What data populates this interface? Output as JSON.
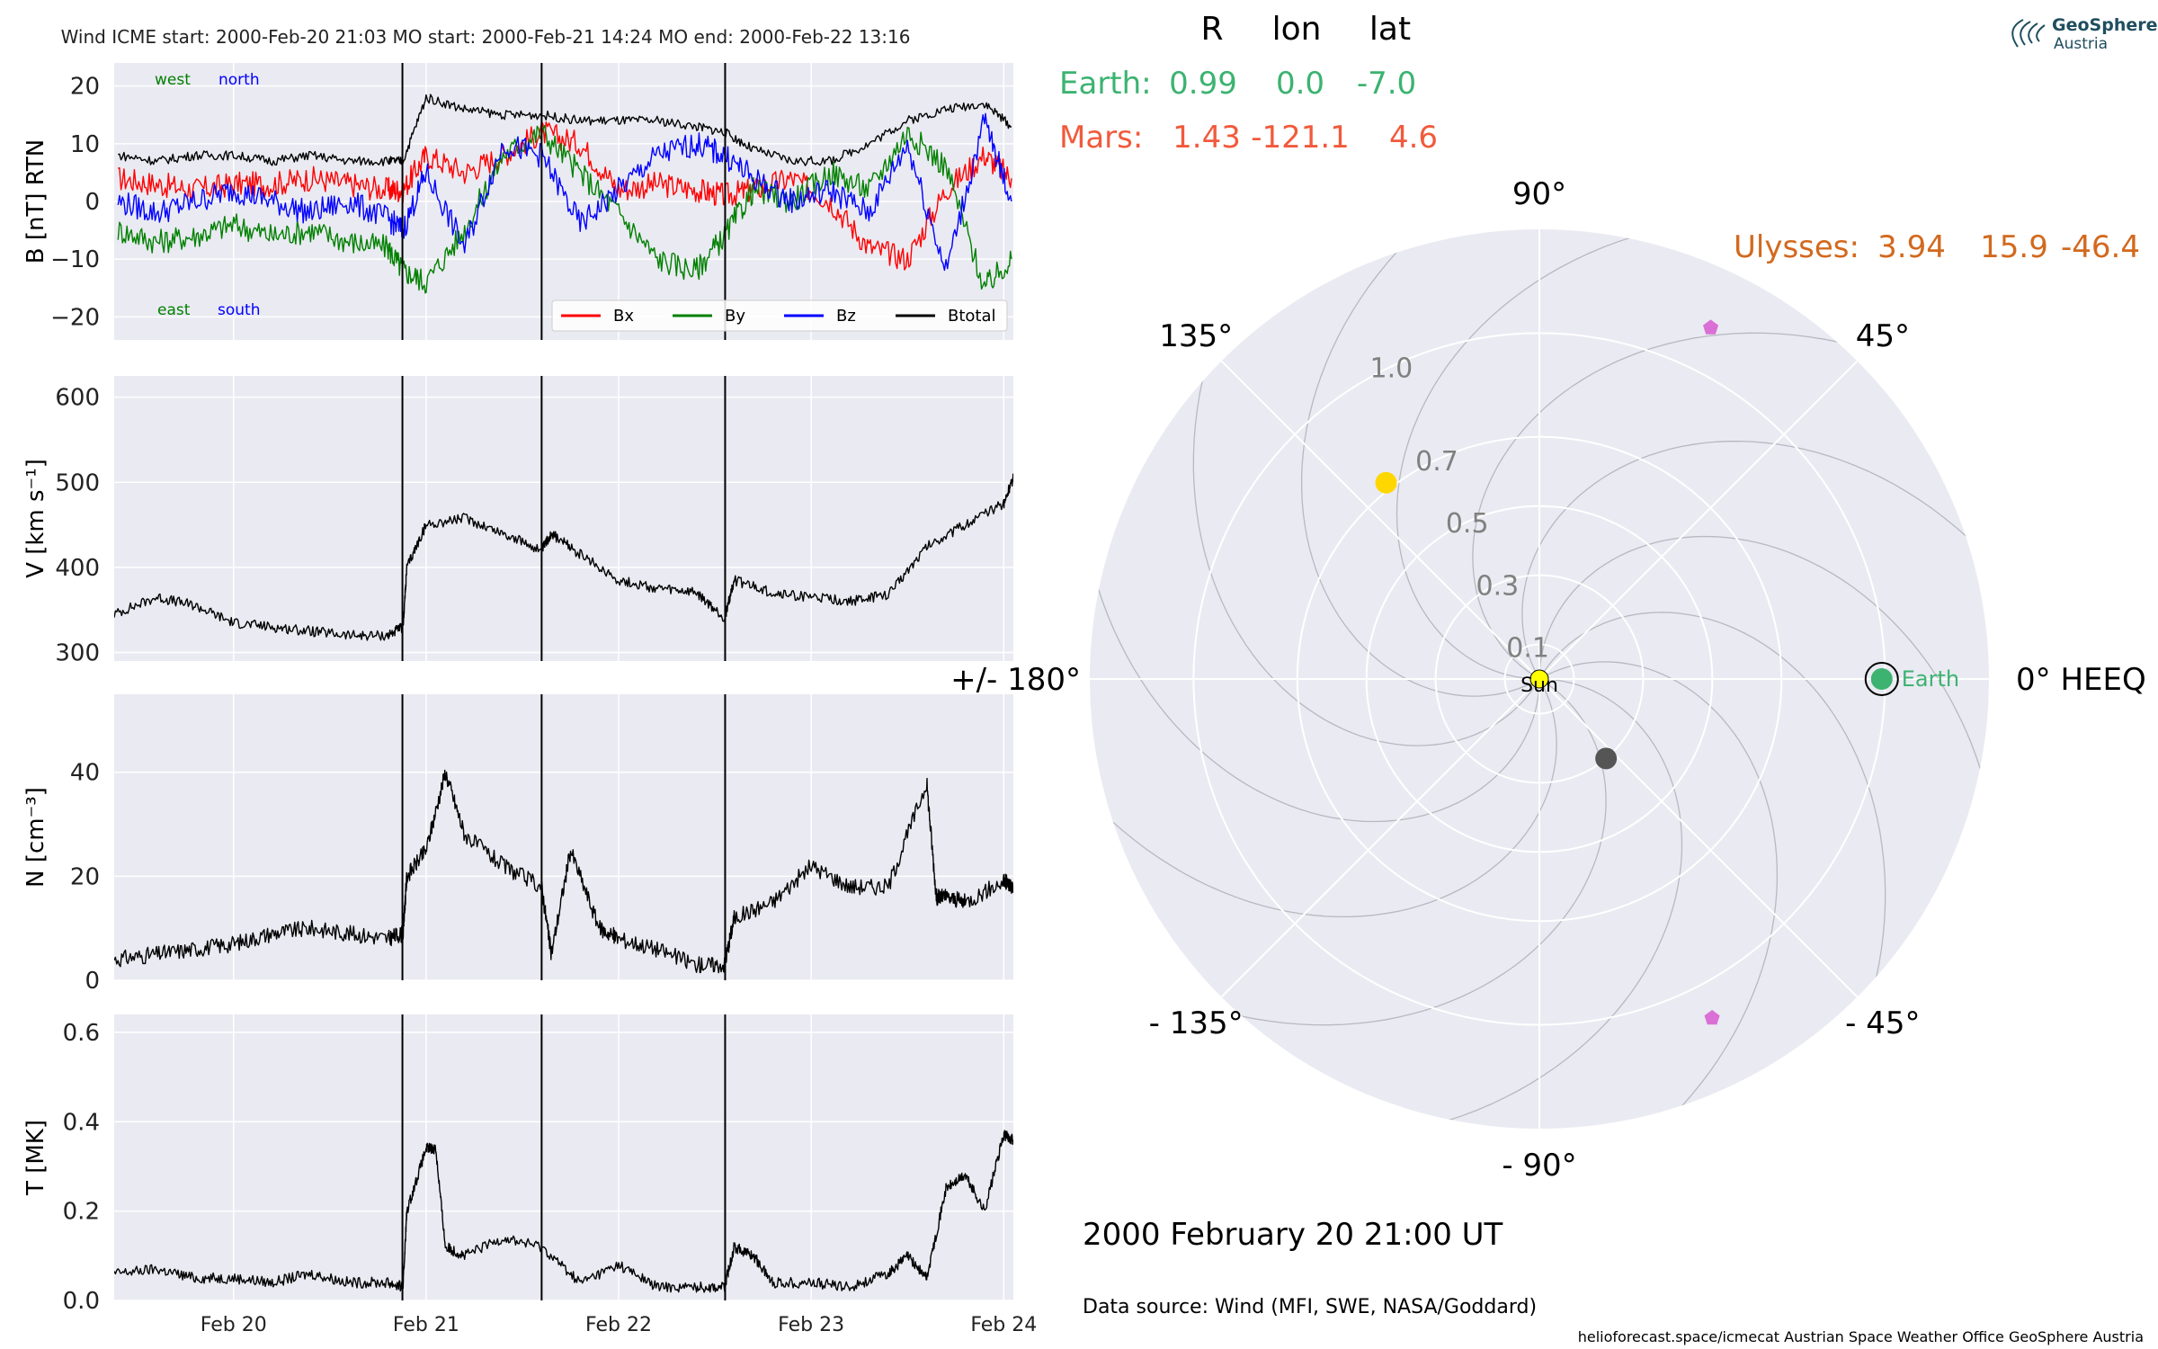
{
  "logo": {
    "line1": "GeoSphere",
    "line2": "Austria",
    "color": "#1f4e5f"
  },
  "header": {
    "title": "Wind    ICME start: 2000-Feb-20 21:03   MO start: 2000-Feb-21 14:24   MO end: 2000-Feb-22 13:16"
  },
  "footer": {
    "timestamp": "2000 February 20  21:00 UT",
    "source": "Data source: Wind (MFI, SWE, NASA/Goddard)",
    "credits": "helioforecast.space/icmecat   Austrian Space Weather Office   GeoSphere Austria"
  },
  "colors": {
    "panel_bg": "#eaeaf2",
    "grid": "#ffffff",
    "bx": "#ff0000",
    "by": "#008000",
    "bz": "#0000ff",
    "btotal": "#000000",
    "earth": "#3cb371",
    "mars": "#f15a3c",
    "ulysses": "#d2691e",
    "sun": "#ffff00",
    "solar_orbiter_like": "#ffd700",
    "gray_marker": "#555555",
    "pink_marker": "#da70d6"
  },
  "chart_data": [
    {
      "type": "line",
      "ylabel": "B [nT] RTN",
      "ylim": [
        -24,
        24
      ],
      "yticks": [
        -20,
        -10,
        0,
        10,
        20
      ],
      "xlim_days": [
        19.38,
        24.05
      ],
      "annotations": {
        "west": "west",
        "north": "north",
        "east": "east",
        "south": "south"
      },
      "legend": {
        "placement": "lower-right",
        "entries": [
          "Bx",
          "By",
          "Bz",
          "Btotal"
        ]
      },
      "series": [
        {
          "name": "Bx",
          "x": [
            19.4,
            19.6,
            19.8,
            20.0,
            20.2,
            20.4,
            20.6,
            20.8,
            20.88,
            21.0,
            21.2,
            21.4,
            21.6,
            21.8,
            22.0,
            22.2,
            22.4,
            22.55,
            22.7,
            22.9,
            23.1,
            23.3,
            23.5,
            23.7,
            23.9,
            24.04
          ],
          "values": [
            4,
            3,
            2,
            3,
            3,
            4,
            3,
            2,
            2,
            8,
            5,
            8,
            12,
            10,
            2,
            3,
            2,
            1,
            2,
            4,
            0,
            -8,
            -10,
            2,
            8,
            4
          ]
        },
        {
          "name": "By",
          "x": [
            19.4,
            19.6,
            19.8,
            20.0,
            20.2,
            20.4,
            20.6,
            20.8,
            20.88,
            21.0,
            21.2,
            21.4,
            21.6,
            21.8,
            22.0,
            22.2,
            22.4,
            22.55,
            22.7,
            22.9,
            23.1,
            23.3,
            23.5,
            23.7,
            23.9,
            24.04
          ],
          "values": [
            -5,
            -7,
            -6,
            -4,
            -6,
            -5,
            -7,
            -8,
            -12,
            -14,
            -5,
            8,
            12,
            5,
            -2,
            -10,
            -12,
            -6,
            2,
            0,
            5,
            2,
            12,
            6,
            -15,
            -10
          ]
        },
        {
          "name": "Bz",
          "x": [
            19.4,
            19.6,
            19.8,
            20.0,
            20.2,
            20.4,
            20.6,
            20.8,
            20.88,
            21.0,
            21.2,
            21.4,
            21.6,
            21.8,
            22.0,
            22.2,
            22.4,
            22.55,
            22.7,
            22.9,
            23.1,
            23.3,
            23.5,
            23.7,
            23.9,
            24.04
          ],
          "values": [
            0,
            -2,
            0,
            2,
            0,
            -2,
            0,
            -3,
            -5,
            5,
            -8,
            10,
            8,
            -4,
            2,
            8,
            10,
            8,
            4,
            0,
            2,
            -2,
            10,
            -12,
            14,
            0
          ]
        },
        {
          "name": "Btotal",
          "x": [
            19.4,
            19.6,
            19.8,
            20.0,
            20.2,
            20.4,
            20.6,
            20.8,
            20.88,
            21.0,
            21.2,
            21.4,
            21.6,
            21.8,
            22.0,
            22.2,
            22.4,
            22.55,
            22.7,
            22.9,
            23.1,
            23.3,
            23.5,
            23.7,
            23.9,
            24.04
          ],
          "values": [
            8,
            7,
            8,
            8,
            7,
            8,
            7,
            7,
            7,
            18,
            16,
            15,
            15,
            14,
            14,
            14,
            13,
            12,
            9,
            7,
            7,
            10,
            14,
            16,
            17,
            13
          ]
        }
      ]
    },
    {
      "type": "line",
      "ylabel": "V [km s⁻¹]",
      "ylim": [
        290,
        625
      ],
      "yticks": [
        300,
        400,
        500,
        600
      ],
      "series": [
        {
          "name": "",
          "x": [
            19.38,
            19.6,
            19.8,
            20.0,
            20.2,
            20.4,
            20.6,
            20.8,
            20.88,
            20.9,
            21.0,
            21.2,
            21.4,
            21.6,
            21.65,
            21.8,
            22.0,
            22.2,
            22.4,
            22.55,
            22.6,
            22.8,
            23.0,
            23.2,
            23.4,
            23.6,
            23.8,
            24.0,
            24.05
          ],
          "values": [
            345,
            365,
            355,
            335,
            330,
            325,
            320,
            320,
            330,
            400,
            450,
            458,
            440,
            420,
            440,
            415,
            385,
            375,
            370,
            340,
            385,
            370,
            365,
            360,
            368,
            425,
            450,
            475,
            505
          ]
        }
      ]
    },
    {
      "type": "line",
      "ylabel": "N [cm⁻³]",
      "ylim": [
        0,
        55
      ],
      "yticks": [
        0,
        20,
        40
      ],
      "series": [
        {
          "name": "",
          "x": [
            19.38,
            19.6,
            19.8,
            20.0,
            20.2,
            20.4,
            20.6,
            20.8,
            20.88,
            20.9,
            21.0,
            21.1,
            21.2,
            21.4,
            21.6,
            21.65,
            21.75,
            21.9,
            22.0,
            22.2,
            22.4,
            22.55,
            22.6,
            22.8,
            23.0,
            23.2,
            23.4,
            23.6,
            23.65,
            23.7,
            23.8,
            24.0,
            24.05
          ],
          "values": [
            4,
            5,
            6,
            7,
            9,
            10,
            9,
            8,
            9,
            20,
            25,
            40,
            28,
            22,
            18,
            5,
            25,
            10,
            8,
            6,
            3,
            3,
            12,
            15,
            22,
            18,
            18,
            38,
            16,
            16,
            15,
            19,
            18
          ]
        }
      ]
    },
    {
      "type": "line",
      "ylabel": "T [MK]",
      "ylim": [
        0,
        0.64
      ],
      "yticks": [
        0.0,
        0.2,
        0.4,
        0.6
      ],
      "series": [
        {
          "name": "",
          "x": [
            19.38,
            19.6,
            19.8,
            20.0,
            20.2,
            20.4,
            20.6,
            20.8,
            20.88,
            20.9,
            21.0,
            21.05,
            21.1,
            21.2,
            21.4,
            21.6,
            21.8,
            22.0,
            22.2,
            22.4,
            22.55,
            22.6,
            22.7,
            22.8,
            23.0,
            23.2,
            23.4,
            23.5,
            23.6,
            23.7,
            23.8,
            23.9,
            24.0,
            24.05
          ],
          "values": [
            0.06,
            0.07,
            0.05,
            0.05,
            0.04,
            0.06,
            0.04,
            0.04,
            0.03,
            0.2,
            0.34,
            0.34,
            0.12,
            0.1,
            0.14,
            0.12,
            0.04,
            0.08,
            0.03,
            0.03,
            0.03,
            0.12,
            0.1,
            0.04,
            0.04,
            0.03,
            0.06,
            0.1,
            0.05,
            0.25,
            0.28,
            0.2,
            0.37,
            0.36
          ]
        }
      ]
    },
    {
      "type": "scatter",
      "projection": "polar",
      "title": "",
      "radial_ticks": [
        "0.1",
        "0.3",
        "0.5",
        "0.7",
        "1.0"
      ],
      "radial_values": [
        0.1,
        0.3,
        0.5,
        0.7,
        1.0
      ],
      "angle_labels": [
        "0° HEEQ",
        "45°",
        "90°",
        "135°",
        "+/- 180°",
        "- 135°",
        "- 90°",
        "- 45°"
      ],
      "angle_values": [
        0,
        45,
        90,
        135,
        180,
        -135,
        -90,
        -45
      ],
      "table": {
        "columns": [
          "R",
          "lon",
          "lat"
        ],
        "rows": [
          {
            "name": "Earth:",
            "R": "0.99",
            "lon": "0.0",
            "lat": "-7.0"
          },
          {
            "name": "Mars:",
            "R": "1.43",
            "lon": "-121.1",
            "lat": "4.6"
          },
          {
            "name": "Ulysses:",
            "R": "3.94",
            "lon": "15.9",
            "lat": "-46.4"
          }
        ]
      },
      "bodies": [
        {
          "label": "Sun",
          "r": 0.0,
          "lon": 0
        },
        {
          "label": "Earth",
          "r": 0.99,
          "lon": 0.0
        },
        {
          "label": "",
          "r": 0.72,
          "lon": 128
        },
        {
          "label": "",
          "r": 0.3,
          "lon": -50
        },
        {
          "label": "",
          "r": 1.13,
          "lon": 64
        },
        {
          "label": "",
          "r": 1.1,
          "lon": -63
        }
      ]
    }
  ]
}
